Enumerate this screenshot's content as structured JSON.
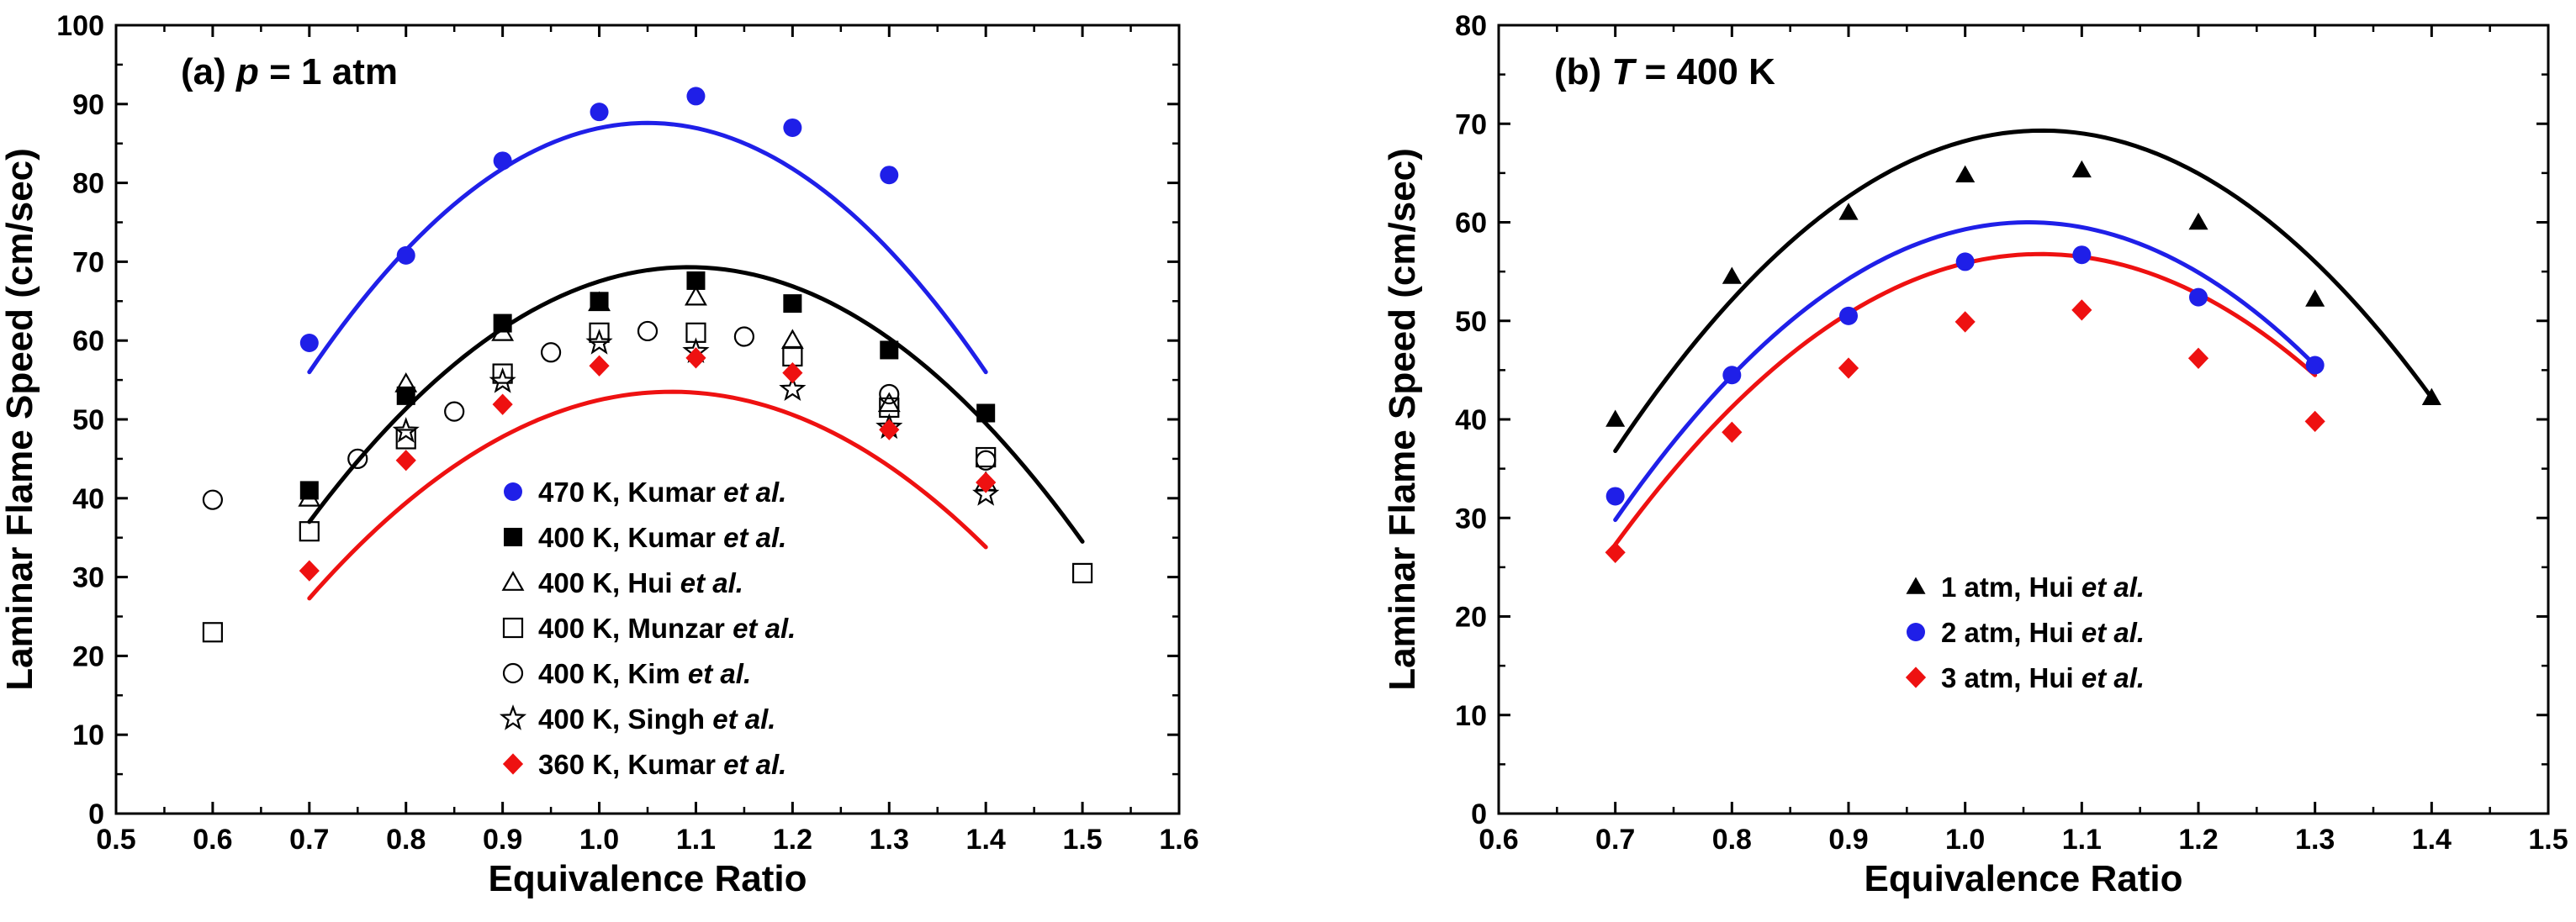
{
  "chart_data": [
    {
      "id": "a",
      "type": "scatter",
      "title": "(a) p = 1 atm",
      "title_parts": {
        "prefix": "(a) ",
        "variable": "p",
        "suffix": " = 1 atm"
      },
      "xlabel": "Equivalence Ratio",
      "ylabel": "Laminar Flame Speed (cm/sec)",
      "xlim": [
        0.5,
        1.6
      ],
      "ylim": [
        0,
        100
      ],
      "xticks": [
        "0.5",
        "0.6",
        "0.7",
        "0.8",
        "0.9",
        "1.0",
        "1.1",
        "1.2",
        "1.3",
        "1.4",
        "1.5",
        "1.6"
      ],
      "yticks": [
        "0",
        "10",
        "20",
        "30",
        "40",
        "50",
        "60",
        "70",
        "80",
        "90",
        "100"
      ],
      "legend_position": "bottom-center",
      "series": [
        {
          "name": "470 K, Kumar et al.",
          "label_main": "470 K, Kumar ",
          "label_italic": "et al.",
          "marker": "circle-filled",
          "color": "#1f1fe8",
          "x": [
            0.7,
            0.8,
            0.9,
            1.0,
            1.1,
            1.2,
            1.3
          ],
          "y": [
            59.7,
            70.8,
            82.8,
            89.0,
            91.0,
            87.0,
            81.0
          ]
        },
        {
          "name": "400 K, Kumar et al.",
          "label_main": "400 K, Kumar ",
          "label_italic": "et al.",
          "marker": "square-filled",
          "color": "#000000",
          "x": [
            0.7,
            0.8,
            0.9,
            1.0,
            1.1,
            1.2,
            1.3,
            1.4
          ],
          "y": [
            41.0,
            53.0,
            62.2,
            65.0,
            67.6,
            64.7,
            58.8,
            50.8
          ]
        },
        {
          "name": "400 K, Hui et al.",
          "label_main": "400 K, Hui ",
          "label_italic": "et al.",
          "marker": "triangle-open",
          "color": "#000000",
          "x": [
            0.7,
            0.8,
            0.9,
            1.0,
            1.1,
            1.2,
            1.3,
            1.4
          ],
          "y": [
            40.0,
            54.5,
            61.0,
            64.8,
            65.5,
            60.0,
            52.0,
            42.0
          ]
        },
        {
          "name": "400 K, Munzar et al.",
          "label_main": "400 K, Munzar ",
          "label_italic": "et al.",
          "marker": "square-open",
          "color": "#000000",
          "x": [
            0.6,
            0.7,
            0.8,
            0.9,
            1.0,
            1.1,
            1.2,
            1.3,
            1.4,
            1.5
          ],
          "y": [
            23.0,
            35.8,
            47.5,
            55.8,
            61.0,
            61.0,
            58.0,
            51.5,
            45.2,
            30.5
          ]
        },
        {
          "name": "400 K, Kim et al.",
          "label_main": "400 K, Kim ",
          "label_italic": "et al.",
          "marker": "circle-open",
          "color": "#000000",
          "x": [
            0.6,
            0.75,
            0.85,
            0.95,
            1.05,
            1.15,
            1.3,
            1.4
          ],
          "y": [
            39.8,
            45.0,
            51.0,
            58.5,
            61.2,
            60.5,
            53.2,
            44.8
          ]
        },
        {
          "name": "400 K, Singh et al.",
          "label_main": "400 K, Singh ",
          "label_italic": "et al.",
          "marker": "star-open",
          "color": "#000000",
          "x": [
            0.8,
            0.9,
            1.0,
            1.1,
            1.2,
            1.3,
            1.4
          ],
          "y": [
            48.5,
            54.8,
            59.7,
            58.6,
            53.8,
            49.0,
            40.5
          ]
        },
        {
          "name": "360 K, Kumar et al.",
          "label_main": "360 K, Kumar ",
          "label_italic": "et al.",
          "marker": "diamond-filled",
          "color": "#ee1111",
          "x": [
            0.7,
            0.8,
            0.9,
            1.0,
            1.1,
            1.2,
            1.3,
            1.4
          ],
          "y": [
            30.8,
            44.8,
            51.9,
            56.8,
            57.8,
            55.9,
            48.7,
            42.0
          ]
        }
      ],
      "fits": [
        {
          "name": "470 K fit",
          "color": "#1f1fe8",
          "xrange": [
            0.7,
            1.4
          ],
          "y_at": {
            "0.7": 56,
            "1.07": 87.5,
            "1.4": 56
          }
        },
        {
          "name": "400 K fit",
          "color": "#000000",
          "xrange": [
            0.7,
            1.5
          ],
          "y_at": {
            "0.7": 37,
            "1.07": 69.2,
            "1.5": 34.5
          }
        },
        {
          "name": "360 K fit",
          "color": "#ee1111",
          "xrange": [
            0.7,
            1.4
          ],
          "y_at": {
            "0.7": 27.3,
            "1.08": 53.5,
            "1.4": 33.8
          }
        }
      ]
    },
    {
      "id": "b",
      "type": "scatter",
      "title": "(b) T = 400 K",
      "title_parts": {
        "prefix": "(b) ",
        "variable": "T",
        "suffix": " = 400 K"
      },
      "xlabel": "Equivalence Ratio",
      "ylabel": "Laminar Flame Speed (cm/sec)",
      "xlim": [
        0.6,
        1.5
      ],
      "ylim": [
        0,
        80
      ],
      "xticks": [
        "0.6",
        "0.7",
        "0.8",
        "0.9",
        "1.0",
        "1.1",
        "1.2",
        "1.3",
        "1.4",
        "1.5"
      ],
      "yticks": [
        "0",
        "10",
        "20",
        "30",
        "40",
        "50",
        "60",
        "70",
        "80"
      ],
      "legend_position": "bottom-center",
      "series": [
        {
          "name": "1 atm, Hui et al.",
          "label_main": "1 atm, Hui ",
          "label_italic": "et al.",
          "marker": "triangle-filled",
          "color": "#000000",
          "x": [
            0.7,
            0.8,
            0.9,
            1.0,
            1.1,
            1.2,
            1.3,
            1.4
          ],
          "y": [
            40.0,
            54.5,
            61.0,
            64.8,
            65.3,
            60.0,
            52.2,
            42.2
          ]
        },
        {
          "name": "2 atm, Hui et al.",
          "label_main": "2 atm, Hui ",
          "label_italic": "et al.",
          "marker": "circle-filled",
          "color": "#1f1fe8",
          "x": [
            0.7,
            0.8,
            0.9,
            1.0,
            1.1,
            1.2,
            1.3
          ],
          "y": [
            32.2,
            44.5,
            50.5,
            56.0,
            56.7,
            52.4,
            45.5
          ]
        },
        {
          "name": "3 atm, Hui et al.",
          "label_main": "3 atm, Hui ",
          "label_italic": "et al.",
          "marker": "diamond-filled",
          "color": "#ee1111",
          "x": [
            0.7,
            0.8,
            0.9,
            1.0,
            1.1,
            1.2,
            1.3
          ],
          "y": [
            26.5,
            38.7,
            45.2,
            49.9,
            51.1,
            46.2,
            39.8
          ]
        }
      ],
      "fits": [
        {
          "name": "1 atm fit",
          "color": "#000000",
          "xrange": [
            0.7,
            1.4
          ],
          "y_at": {
            "0.7": 36.8,
            "1.06": 69.3,
            "1.4": 42.2
          }
        },
        {
          "name": "2 atm fit",
          "color": "#1f1fe8",
          "xrange": [
            0.7,
            1.3
          ],
          "y_at": {
            "0.7": 29.8,
            "1.1": 59.5,
            "1.3": 45.5
          }
        },
        {
          "name": "3 atm fit",
          "color": "#ee1111",
          "xrange": [
            0.7,
            1.3
          ],
          "y_at": {
            "0.7": 27.3,
            "1.1": 56.5,
            "1.3": 44.5
          }
        }
      ]
    }
  ]
}
